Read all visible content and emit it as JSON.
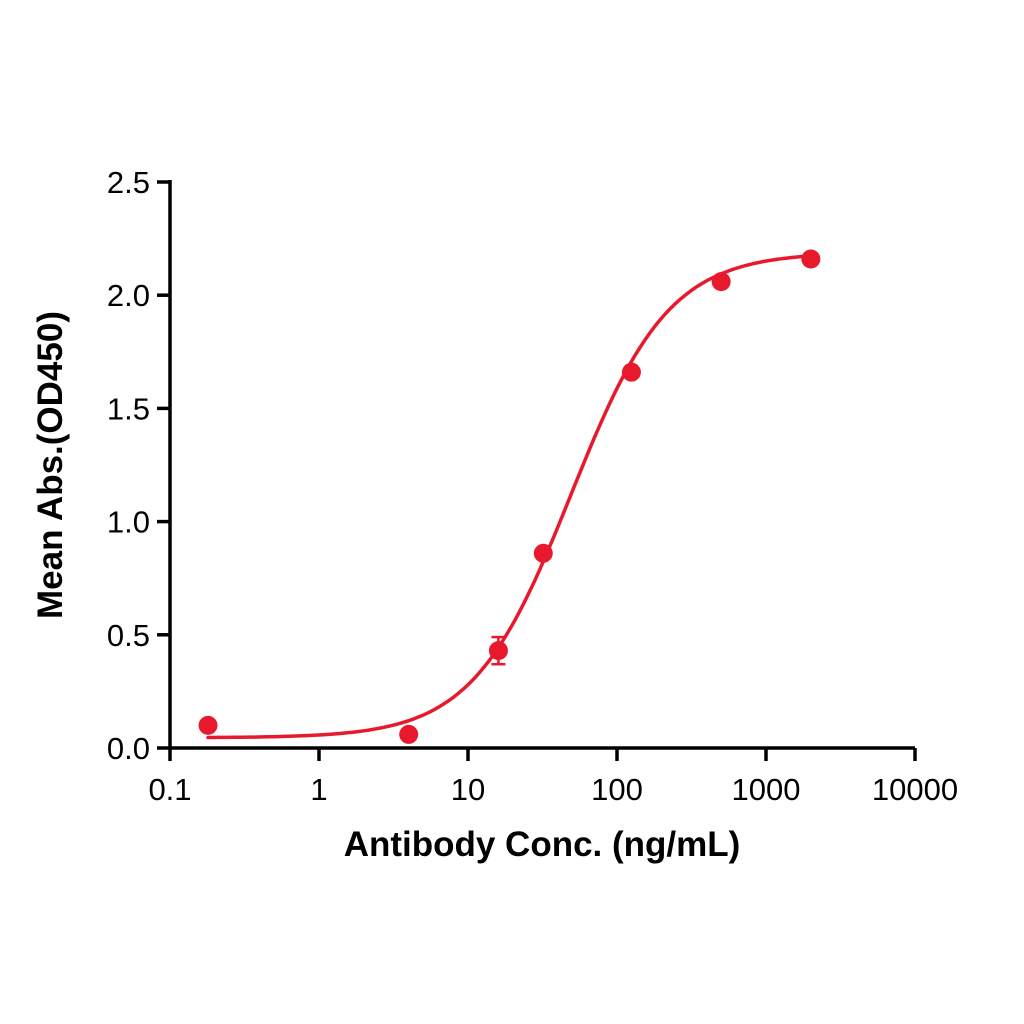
{
  "chart_data": {
    "type": "scatter",
    "title": "",
    "xlabel": "Antibody Conc. (ng/mL)",
    "ylabel": "Mean Abs.(OD450)",
    "x_scale": "log",
    "xlim": [
      0.1,
      10000
    ],
    "ylim": [
      0,
      2.5
    ],
    "x_ticks": [
      0.1,
      1,
      10,
      100,
      1000,
      10000
    ],
    "x_tick_labels": [
      "0.1",
      "1",
      "10",
      "100",
      "1000",
      "10000"
    ],
    "y_ticks": [
      0,
      0.5,
      1,
      1.5,
      2,
      2.5
    ],
    "y_tick_labels": [
      "0.0",
      "0.5",
      "1.0",
      "1.5",
      "2.0",
      "2.5"
    ],
    "grid": false,
    "legend": false,
    "accent_color": "#e8192c",
    "axis_color": "#000000",
    "series": [
      {
        "color": "#e8192c",
        "marker": "circle",
        "marker_radius": 9.5,
        "x": [
          0.18,
          4,
          16,
          32,
          125,
          500,
          2000
        ],
        "y": [
          0.1,
          0.06,
          0.43,
          0.86,
          1.66,
          2.06,
          2.16
        ],
        "y_err": [
          0,
          0,
          0.06,
          0,
          0,
          0,
          0
        ]
      }
    ],
    "fit_curve": {
      "model": "4PL-sigmoid",
      "bottom": 0.045,
      "top": 2.19,
      "ec50": 49,
      "hill": 1.32,
      "x_range": [
        0.18,
        2000
      ],
      "color": "#e8192c",
      "stroke_width": 3.5
    }
  }
}
